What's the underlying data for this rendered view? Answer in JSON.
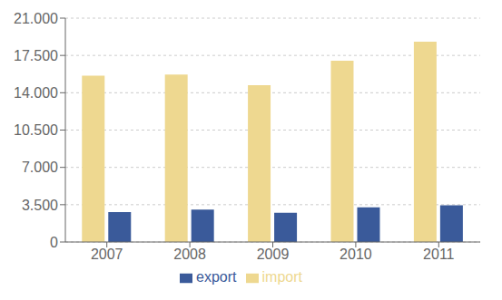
{
  "chart_data": {
    "type": "bar",
    "categories": [
      "2007",
      "2008",
      "2009",
      "2010",
      "2011"
    ],
    "series": [
      {
        "name": "import",
        "color": "#EED890",
        "values": [
          15600,
          15700,
          14700,
          17000,
          18800
        ]
      },
      {
        "name": "export",
        "color": "#3A5A9A",
        "values": [
          2800,
          3050,
          2750,
          3250,
          3450
        ]
      }
    ],
    "ylim": [
      0,
      21000
    ],
    "yticks": [
      0,
      {
        "value": 3500,
        "label": "3.500"
      },
      {
        "value": 7000,
        "label": "7.000"
      },
      {
        "value": 10500,
        "label": "10.500"
      },
      {
        "value": 14000,
        "label": "14.000"
      },
      {
        "value": 17500,
        "label": "17.500"
      },
      {
        "value": 21000,
        "label": "21.000"
      }
    ],
    "grid": true,
    "legend": "bottom"
  }
}
